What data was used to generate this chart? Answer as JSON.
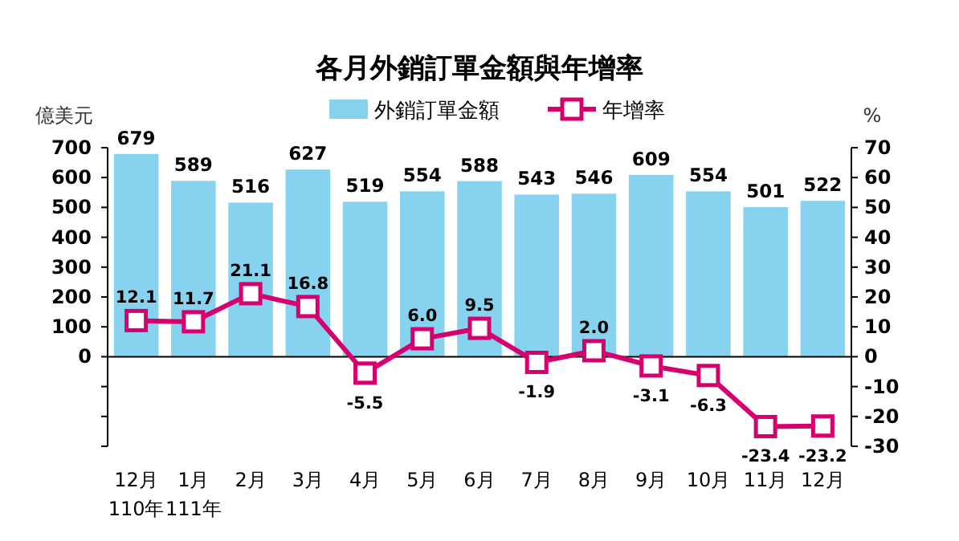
{
  "chart_data": {
    "type": "bar",
    "title": "各月外銷訂單金額與年增率",
    "categories": [
      "12月\n110年",
      "1月\n111年",
      "2月",
      "3月",
      "4月",
      "5月",
      "6月",
      "7月",
      "8月",
      "9月",
      "10月",
      "11月",
      "12月"
    ],
    "series": [
      {
        "name": "外銷訂單金額",
        "color": "#87d3ef",
        "values": [
          679,
          589,
          516,
          627,
          519,
          554,
          588,
          543,
          546,
          609,
          554,
          501,
          522
        ]
      },
      {
        "name": "年增率",
        "type": "line",
        "axis": "y2",
        "color": "#d5006d",
        "values": [
          12.1,
          11.7,
          21.1,
          16.8,
          -5.5,
          6.0,
          9.5,
          -1.9,
          2.0,
          -3.1,
          -6.3,
          -23.4,
          -23.2
        ],
        "value_labels": [
          "12.1",
          "11.7",
          "21.1",
          "16.8",
          "-5.5",
          "6.0",
          "9.5",
          "-1.9",
          "2.0",
          "-3.1",
          "-6.3",
          "-23.4",
          "-23.2"
        ]
      }
    ],
    "ylabel": "億美元",
    "y2label": "%",
    "ylim": [
      -300,
      700
    ],
    "yticks": [
      {
        "value": -300,
        "label": null
      },
      {
        "value": -200,
        "label": null
      },
      {
        "value": -100,
        "label": null
      },
      0,
      100,
      200,
      300,
      400,
      500,
      600,
      700
    ],
    "y2lim": [
      -30,
      70
    ],
    "y2ticks": [
      -30,
      -20,
      -10,
      0,
      10,
      20,
      30,
      40,
      50,
      60,
      70
    ],
    "data_labels": true,
    "legend": "top",
    "marker": "square"
  }
}
